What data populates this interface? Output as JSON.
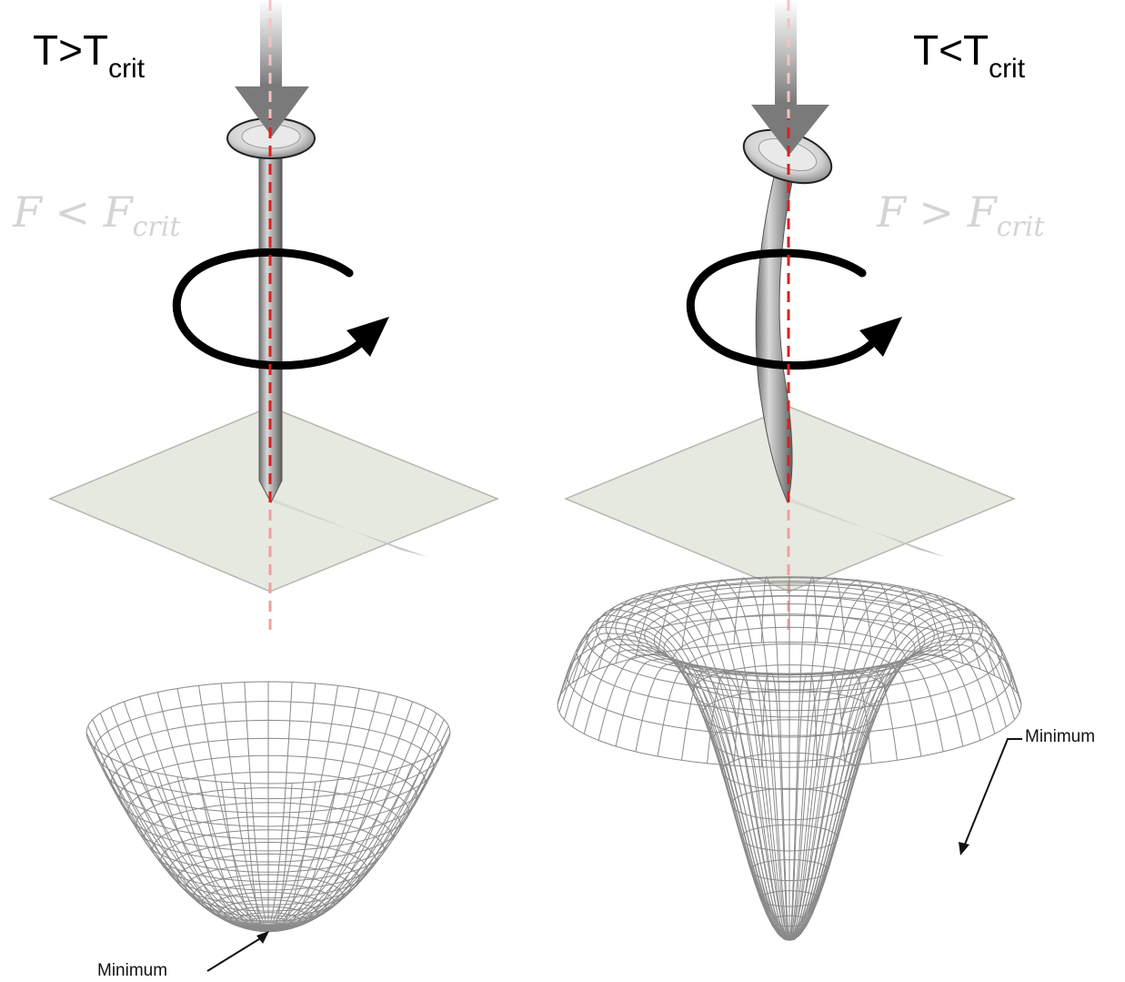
{
  "left_panel": {
    "temperature": {
      "base": "T>T",
      "sub": "crit"
    },
    "force": {
      "base": "F < F",
      "sub": "crit"
    },
    "minimum_label": "Minimum"
  },
  "right_panel": {
    "temperature": {
      "base": "T<T",
      "sub": "crit"
    },
    "force": {
      "base": "F > F",
      "sub": "crit"
    },
    "minimum_label": "Minimum"
  },
  "colors": {
    "axis": "#d62020",
    "plate": "#e6e9e0",
    "mesh": "#8a8a8a",
    "rotation_arrow": "#000000",
    "force_label": "#d4d4d4"
  }
}
